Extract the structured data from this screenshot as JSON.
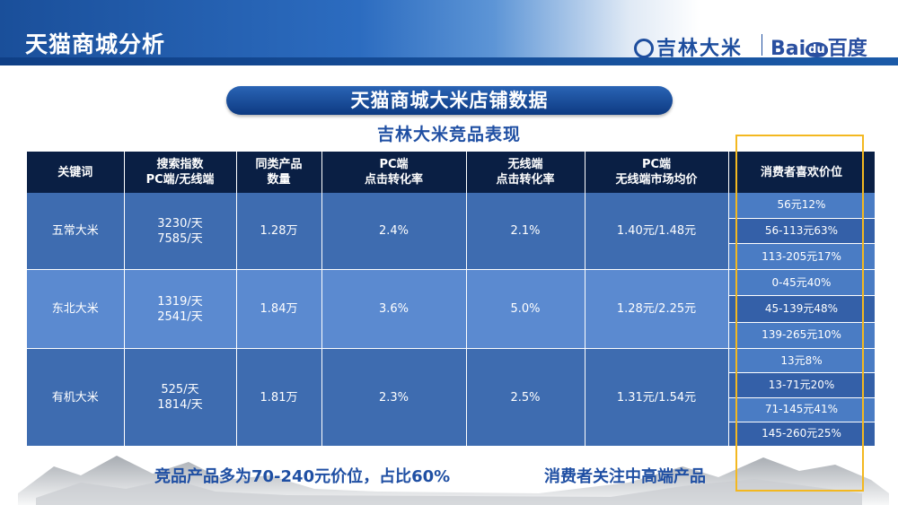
{
  "header": {
    "title": "天猫商城分析",
    "logo_jilin": "吉林大米",
    "logo_baidu_prefix": "Bai",
    "logo_baidu_du": "du",
    "logo_baidu_suffix": "百度"
  },
  "banner": {
    "title": "天猫商城大米店铺数据"
  },
  "subtitle": "吉林大米竞品表现",
  "table": {
    "headers": [
      [
        "关键词"
      ],
      [
        "搜索指数",
        "PC端/无线端"
      ],
      [
        "同类产品",
        "数量"
      ],
      [
        "PC端",
        "点击转化率"
      ],
      [
        "无线端",
        "点击转化率"
      ],
      [
        "PC端",
        "无线端市场均价"
      ],
      [
        "消费者喜欢价位"
      ]
    ],
    "rows": [
      {
        "keyword": "五常大米",
        "search_pc": "3230/天",
        "search_mobile": "7585/天",
        "count": "1.28万",
        "pc_rate": "2.4%",
        "mobile_rate": "2.1%",
        "avg_price": "1.40元/1.48元",
        "prices": [
          "56元12%",
          "56-113元63%",
          "113-205元17%"
        ]
      },
      {
        "keyword": "东北大米",
        "search_pc": "1319/天",
        "search_mobile": "2541/天",
        "count": "1.84万",
        "pc_rate": "3.6%",
        "mobile_rate": "5.0%",
        "avg_price": "1.28元/2.25元",
        "prices": [
          "0-45元40%",
          "45-139元48%",
          "139-265元10%"
        ]
      },
      {
        "keyword": "有机大米",
        "search_pc": "525/天",
        "search_mobile": "1814/天",
        "count": "1.81万",
        "pc_rate": "2.3%",
        "mobile_rate": "2.5%",
        "avg_price": "1.31元/1.54元",
        "prices": [
          "13元8%",
          "13-71元20%",
          "71-145元41%",
          "145-260元25%"
        ]
      }
    ]
  },
  "conclusion": {
    "left": "竞品产品多为70-240元价位，占比60%",
    "right": "消费者关注中高端产品"
  },
  "colors": {
    "header_blue": "#1f5aa8",
    "table_header": "#0a1f44",
    "row_dark": "#3e6cb0",
    "row_light": "#5b8ad0",
    "highlight": "#f3b820",
    "text_blue": "#1f4fa3"
  }
}
